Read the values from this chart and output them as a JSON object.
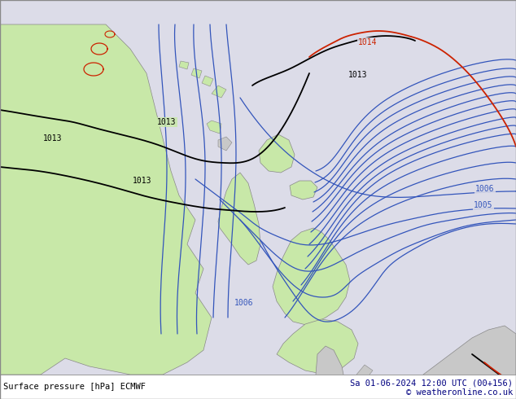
{
  "title_left": "Surface pressure [hPa] ECMWF",
  "title_right": "Sa 01-06-2024 12:00 UTC (00+156)",
  "copyright": "© weatheronline.co.uk",
  "bg_color": "#e8e8ee",
  "ocean_color": "#dcdce8",
  "land_green": "#c8e8a8",
  "land_gray": "#c8c8c8",
  "isobar_blue": "#3355bb",
  "isobar_black": "#000000",
  "isobar_red": "#cc2200",
  "label_blue": "#3355bb",
  "label_black": "#000000",
  "label_red": "#cc2200",
  "bottom_left_color": "#000000",
  "bottom_right_color": "#000080",
  "fig_width": 6.34,
  "fig_height": 4.9,
  "dpi": 100
}
